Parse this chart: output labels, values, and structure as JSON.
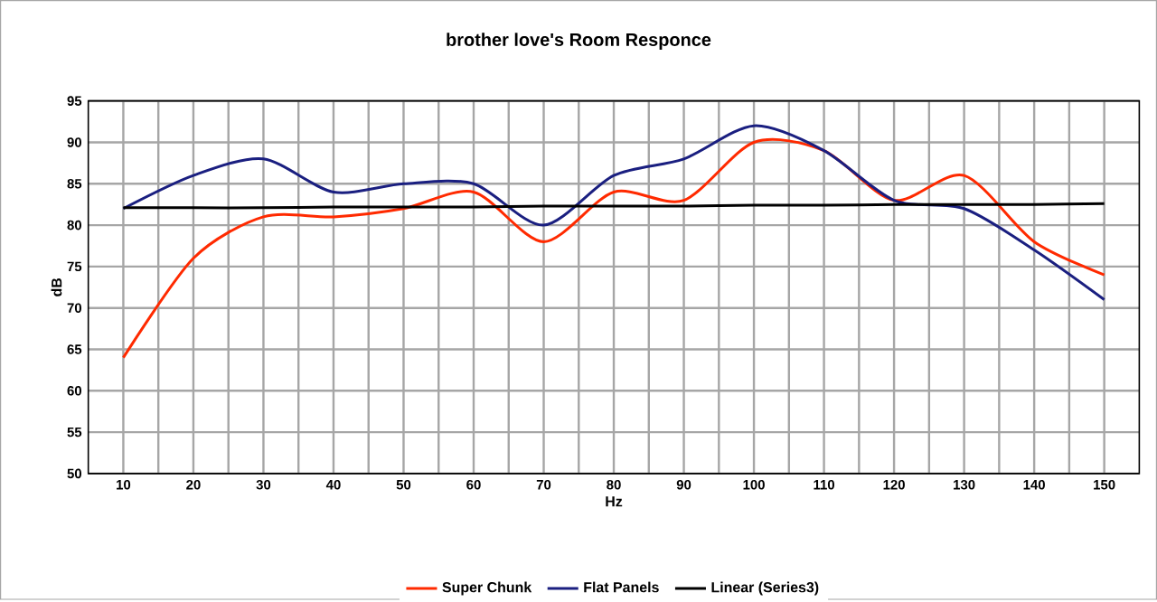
{
  "chart_data": {
    "type": "line",
    "title": "brother love's Room Responce",
    "xlabel": "Hz",
    "ylabel": "dB",
    "categories": [
      "10",
      "20",
      "30",
      "40",
      "50",
      "60",
      "70",
      "80",
      "90",
      "100",
      "110",
      "120",
      "130",
      "140",
      "150"
    ],
    "series": [
      {
        "name": "Super Chunk",
        "color": "#ff2a00",
        "values": [
          64,
          76,
          81,
          81,
          82,
          84,
          78,
          84,
          83,
          90,
          89,
          83,
          86,
          78,
          74
        ]
      },
      {
        "name": "Flat Panels",
        "color": "#1a1f80",
        "values": [
          82,
          86,
          88,
          84,
          85,
          85,
          80,
          86,
          88,
          92,
          89,
          83,
          82,
          77,
          71
        ]
      },
      {
        "name": "Linear (Series3)",
        "color": "#000000",
        "values": [
          82.1,
          82.1,
          82.1,
          82.2,
          82.2,
          82.2,
          82.3,
          82.3,
          82.3,
          82.4,
          82.4,
          82.5,
          82.5,
          82.5,
          82.6
        ]
      }
    ],
    "ylim": [
      50,
      95
    ],
    "yticks": [
      50,
      55,
      60,
      65,
      70,
      75,
      80,
      85,
      90,
      95
    ],
    "grid": true,
    "legend": "bottom",
    "marker": "none",
    "line_style": "solid"
  }
}
